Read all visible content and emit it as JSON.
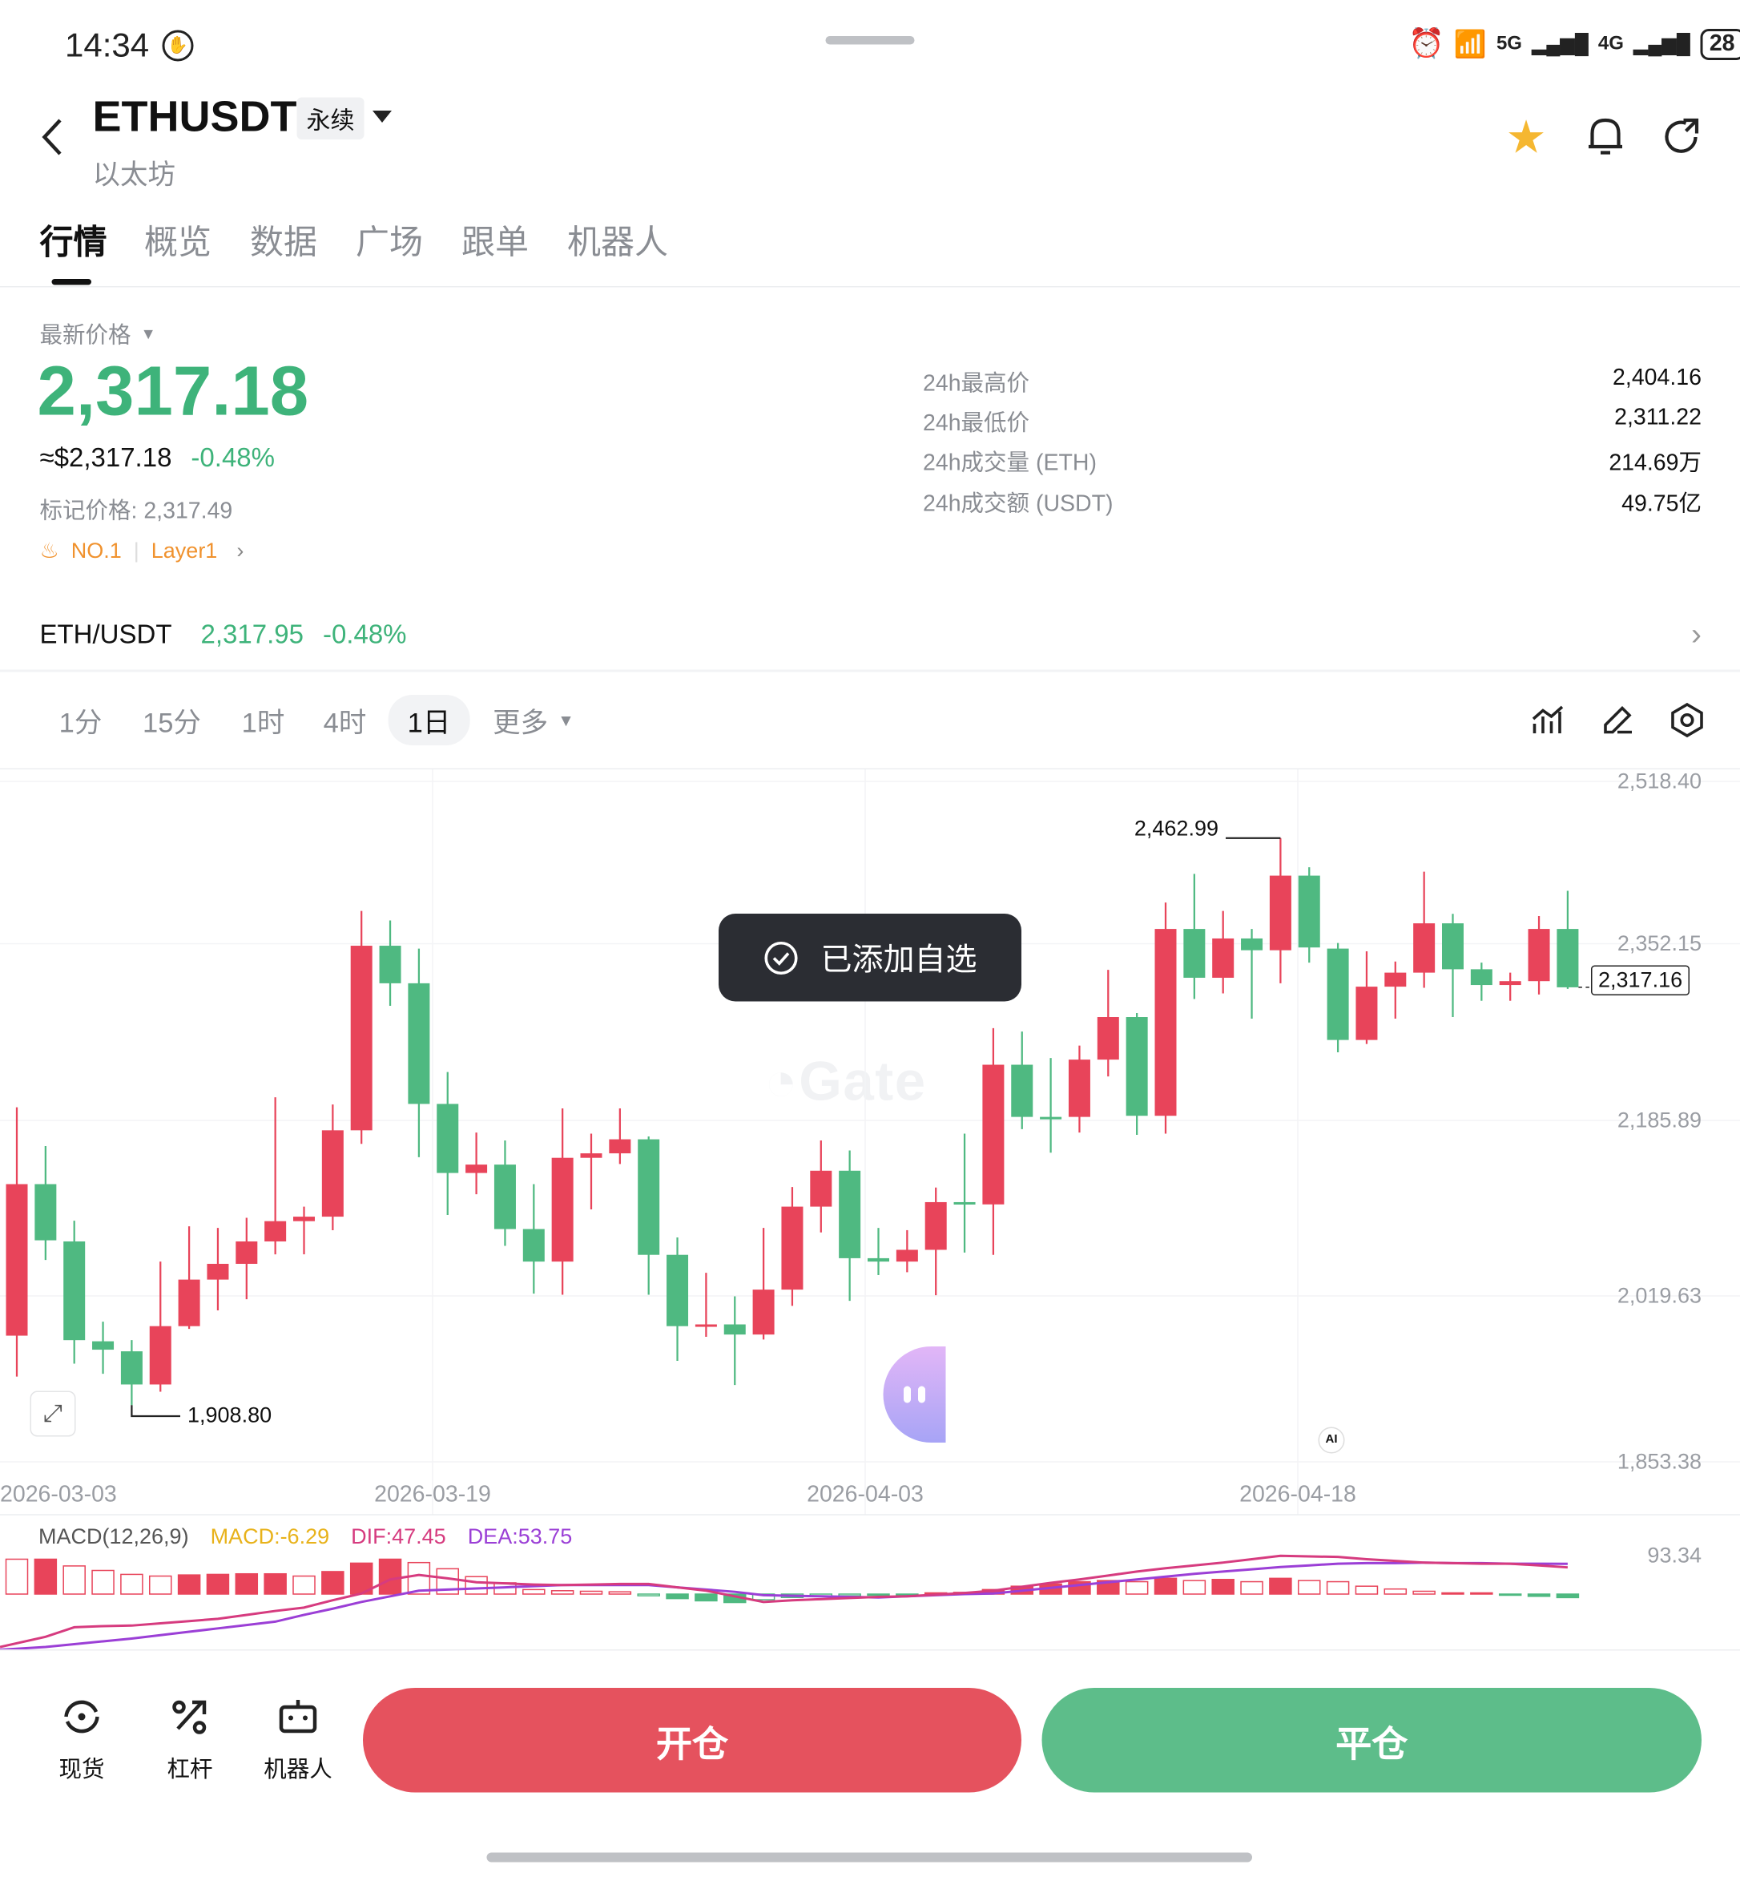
{
  "status_bar": {
    "time": "14:34",
    "battery": "28",
    "network_1": "5G",
    "network_2": "4G"
  },
  "header": {
    "symbol": "ETHUSDT",
    "badge": "永续",
    "subtitle": "以太坊"
  },
  "tabs": [
    {
      "label": "行情",
      "active": true
    },
    {
      "label": "概览"
    },
    {
      "label": "数据"
    },
    {
      "label": "广场"
    },
    {
      "label": "跟单"
    },
    {
      "label": "机器人"
    }
  ],
  "price": {
    "label": "最新价格",
    "last": "2,317.18",
    "usd": "≈$2,317.18",
    "change": "-0.48%",
    "mark": "标记价格: 2,317.49",
    "rank": "NO.1",
    "tag": "Layer1"
  },
  "stats": [
    {
      "label": "24h最高价",
      "value": "2,404.16"
    },
    {
      "label": "24h最低价",
      "value": "2,311.22"
    },
    {
      "label": "24h成交量 (ETH)",
      "value": "214.69万"
    },
    {
      "label": "24h成交额 (USDT)",
      "value": "49.75亿"
    }
  ],
  "spot": {
    "pair": "ETH/USDT",
    "price": "2,317.95",
    "change": "-0.48%"
  },
  "intervals": [
    {
      "label": "1分"
    },
    {
      "label": "15分"
    },
    {
      "label": "1时"
    },
    {
      "label": "4时"
    },
    {
      "label": "1日",
      "active": true
    },
    {
      "label": "更多"
    }
  ],
  "toast": {
    "text": "已添加自选"
  },
  "watermark": "Gate",
  "ai_badge": "AI",
  "colors": {
    "up": "#e8445a",
    "down": "#4fb981",
    "accent_green": "#3eb37a",
    "open_button": "#e5525e",
    "close_button": "#5dbd8a",
    "star": "#f5b731",
    "dif": "#d63b7f",
    "dea": "#9b3fd6",
    "macd": "#e8b21a"
  },
  "chart_data": {
    "type": "candlestick",
    "y_ticks": [
      "2,518.40",
      "2,352.15",
      "2,185.89",
      "2,019.63",
      "1,853.38"
    ],
    "ylim": [
      1853.38,
      2518.4
    ],
    "x_ticks": [
      "2026-03-03",
      "2026-03-19",
      "2026-04-03",
      "2026-04-18"
    ],
    "high_label": "2,462.99",
    "low_label": "1,908.80",
    "current_label": "2,317.16",
    "candles": [
      [
        1976.7,
        2199.9,
        1936.7,
        2124.8
      ],
      [
        2124.8,
        2162.0,
        2050.7,
        2069.9
      ],
      [
        2068.8,
        2089.1,
        1949.3,
        1972.3
      ],
      [
        1971.2,
        1990.4,
        1939.4,
        1963.0
      ],
      [
        1961.4,
        1972.3,
        1908.8,
        1929.0
      ],
      [
        1929.0,
        2049.1,
        1921.9,
        1986.0
      ],
      [
        1986.0,
        2083.6,
        1983.3,
        2031.5
      ],
      [
        2031.5,
        2082.0,
        2001.4,
        2046.9
      ],
      [
        2046.9,
        2091.9,
        2012.3,
        2068.8
      ],
      [
        2068.8,
        2209.7,
        2056.2,
        2088.6
      ],
      [
        2088.6,
        2102.8,
        2056.2,
        2093.0
      ],
      [
        2093.0,
        2202.6,
        2079.8,
        2177.4
      ],
      [
        2177.4,
        2391.8,
        2164.2,
        2357.8
      ],
      [
        2357.8,
        2382.5,
        2299.1,
        2321.1
      ],
      [
        2321.1,
        2355.0,
        2151.1,
        2203.2
      ],
      [
        2203.2,
        2234.4,
        2094.6,
        2135.7
      ],
      [
        2135.7,
        2175.2,
        2114.9,
        2143.9
      ],
      [
        2143.9,
        2167.5,
        2064.5,
        2080.9
      ],
      [
        2080.9,
        2124.8,
        2017.8,
        2049.1
      ],
      [
        2049.1,
        2198.8,
        2016.7,
        2150.5
      ],
      [
        2150.5,
        2174.1,
        2100.1,
        2154.9
      ],
      [
        2154.9,
        2198.8,
        2144.5,
        2168.6
      ],
      [
        2168.6,
        2171.4,
        2016.7,
        2055.7
      ],
      [
        2055.7,
        2072.7,
        1952.1,
        1986.0
      ],
      [
        1986.0,
        2038.1,
        1975.6,
        1987.7
      ],
      [
        1987.7,
        2015.1,
        1928.5,
        1977.8
      ],
      [
        1977.8,
        2082.0,
        1972.9,
        2021.7
      ],
      [
        2021.7,
        2122.0,
        2005.8,
        2102.8
      ],
      [
        2102.8,
        2167.5,
        2077.6,
        2137.9
      ],
      [
        2137.9,
        2157.7,
        2010.7,
        2052.4
      ],
      [
        2052.4,
        2082.0,
        2035.9,
        2049.1
      ],
      [
        2049.1,
        2079.8,
        2038.7,
        2060.6
      ],
      [
        2060.6,
        2121.5,
        2016.2,
        2107.2
      ],
      [
        2107.2,
        2174.1,
        2057.9,
        2105.0
      ],
      [
        2105.0,
        2277.2,
        2055.7,
        2241.5
      ],
      [
        2241.5,
        2273.9,
        2178.5,
        2190.5
      ],
      [
        2190.5,
        2248.1,
        2155.5,
        2188.9
      ],
      [
        2190.5,
        2260.2,
        2175.2,
        2246.5
      ],
      [
        2246.5,
        2334.2,
        2230.0,
        2288.1
      ],
      [
        2288.1,
        2292.0,
        2173.0,
        2191.6
      ],
      [
        2191.6,
        2400.0,
        2174.1,
        2374.2
      ],
      [
        2374.2,
        2428.0,
        2305.7,
        2326.5
      ],
      [
        2326.5,
        2391.8,
        2311.2,
        2364.9
      ],
      [
        2364.9,
        2374.2,
        2286.5,
        2353.4
      ],
      [
        2353.4,
        2462.99,
        2321.1,
        2426.3
      ],
      [
        2426.3,
        2434.5,
        2341.3,
        2356.1
      ],
      [
        2355.0,
        2360.5,
        2253.6,
        2265.7
      ],
      [
        2265.7,
        2352.3,
        2261.8,
        2317.8
      ],
      [
        2317.8,
        2342.4,
        2286.5,
        2331.5
      ],
      [
        2331.5,
        2430.2,
        2316.7,
        2379.7
      ],
      [
        2379.7,
        2389.0,
        2288.1,
        2334.8
      ],
      [
        2334.8,
        2341.3,
        2304.0,
        2319.4
      ],
      [
        2319.4,
        2331.5,
        2304.0,
        2323.2
      ],
      [
        2323.2,
        2386.8,
        2310.1,
        2374.2
      ],
      [
        2374.2,
        2411.5,
        2315.6,
        2317.16
      ]
    ],
    "candle_format": [
      "open",
      "high",
      "low",
      "close"
    ],
    "macd": {
      "title": "MACD(12,26,9)",
      "macd_label": "MACD:-6.29",
      "dif_label": "DIF:47.45",
      "dea_label": "DEA:53.75",
      "axis_top": "93.34",
      "histogram": [
        62,
        62,
        50,
        42,
        35,
        32,
        34,
        35,
        36,
        36,
        32,
        40,
        55,
        62,
        56,
        45,
        31,
        20,
        8,
        6,
        5,
        4,
        -3,
        -8,
        -12,
        -15,
        -10,
        -6,
        -4,
        -3,
        -2,
        -1,
        2,
        3,
        8,
        14,
        18,
        22,
        24,
        22,
        28,
        24,
        26,
        22,
        28,
        24,
        22,
        14,
        9,
        5,
        2,
        0,
        -2,
        -4,
        -6.29
      ],
      "dif": [
        -94,
        -76,
        -59,
        -57,
        -56,
        -52,
        -48,
        -44,
        -37,
        -30,
        -24,
        -11,
        1,
        26,
        34,
        28,
        21,
        19,
        17,
        16,
        17,
        18,
        18,
        12,
        6,
        -4,
        -14,
        -11,
        -9,
        -7,
        -5,
        -4,
        -1,
        2,
        6,
        13,
        20,
        26,
        33,
        40,
        46,
        51,
        56,
        62,
        68,
        67,
        66,
        62,
        59,
        56,
        55,
        54,
        54,
        51,
        47.45
      ],
      "dea": [
        -99,
        -94,
        -89,
        -84,
        -79,
        -73,
        -67,
        -61,
        -55,
        -49,
        -37,
        -26,
        -14,
        -4,
        6,
        8,
        10,
        12,
        14,
        16,
        16,
        16,
        16,
        12,
        8,
        4,
        -2,
        -3,
        -4,
        -5,
        -6,
        -4,
        -2,
        0,
        1,
        6,
        11,
        16,
        21,
        26,
        31,
        36,
        40,
        44,
        48,
        51,
        54,
        55,
        55,
        56,
        55,
        55,
        54,
        54,
        53.75
      ]
    }
  },
  "bottom": {
    "nav": [
      {
        "label": "现货"
      },
      {
        "label": "杠杆"
      },
      {
        "label": "机器人"
      }
    ],
    "open": "开仓",
    "close": "平仓"
  }
}
